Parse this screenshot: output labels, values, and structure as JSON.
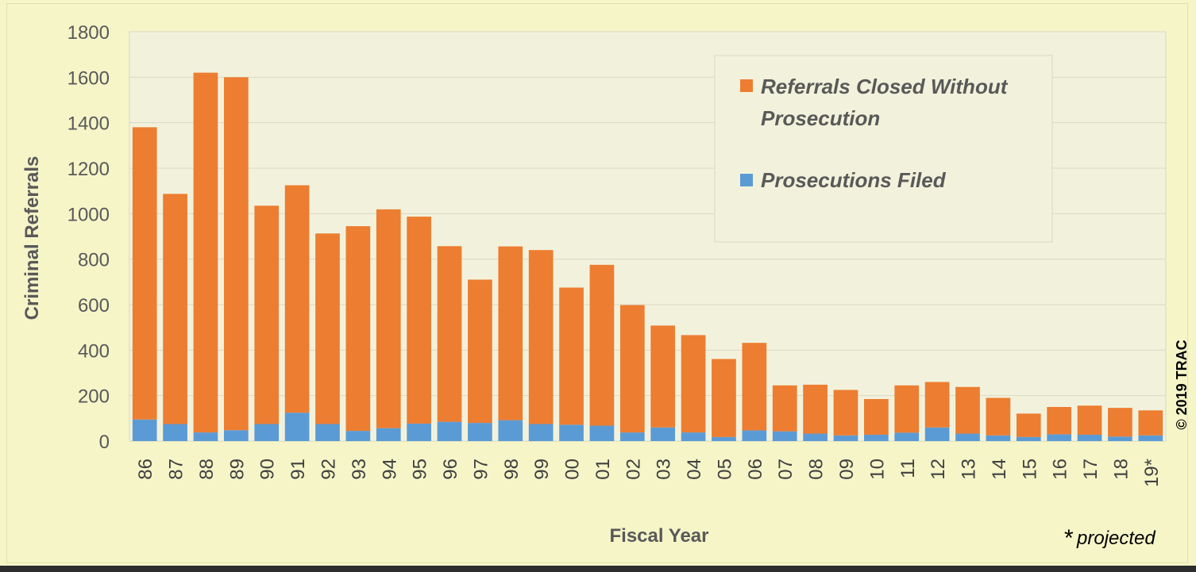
{
  "chart_data": {
    "type": "bar",
    "stacked": true,
    "ylabel": "Criminal Referrals",
    "xlabel": "Fiscal Year",
    "ylim": [
      0,
      1800
    ],
    "yticks": [
      0,
      200,
      400,
      600,
      800,
      1000,
      1200,
      1400,
      1600,
      1800
    ],
    "grid": true,
    "legend_position": "top-right",
    "categories": [
      "86",
      "87",
      "88",
      "89",
      "90",
      "91",
      "92",
      "93",
      "94",
      "95",
      "96",
      "97",
      "98",
      "99",
      "00",
      "01",
      "02",
      "03",
      "04",
      "05",
      "06",
      "07",
      "08",
      "09",
      "10",
      "11",
      "12",
      "13",
      "14",
      "15",
      "16",
      "17",
      "18",
      "19*"
    ],
    "series": [
      {
        "name": "Prosecutions Filed",
        "color": "#5b9bd5",
        "values": [
          95,
          75,
          38,
          48,
          75,
          125,
          75,
          45,
          57,
          77,
          85,
          80,
          92,
          75,
          72,
          68,
          38,
          60,
          38,
          18,
          47,
          43,
          33,
          25,
          28,
          37,
          60,
          33,
          25,
          18,
          30,
          28,
          20,
          25
        ]
      },
      {
        "name": "Referrals Closed Without Prosecution",
        "color": "#ed7d31",
        "values": [
          1285,
          1012,
          1582,
          1552,
          960,
          1000,
          838,
          900,
          962,
          910,
          772,
          630,
          764,
          765,
          603,
          707,
          560,
          448,
          428,
          343,
          385,
          202,
          215,
          200,
          157,
          208,
          200,
          205,
          165,
          103,
          120,
          128,
          126,
          110
        ]
      }
    ],
    "legend": [
      {
        "label_line1": "Referrals Closed Without",
        "label_line2": "Prosecution",
        "color": "#ed7d31"
      },
      {
        "label_line1": "Prosecutions Filed",
        "label_line2": "",
        "color": "#5b9bd5"
      }
    ],
    "copyright": "© 2019 TRAC",
    "footnote_star": "*",
    "footnote_text": "projected"
  }
}
